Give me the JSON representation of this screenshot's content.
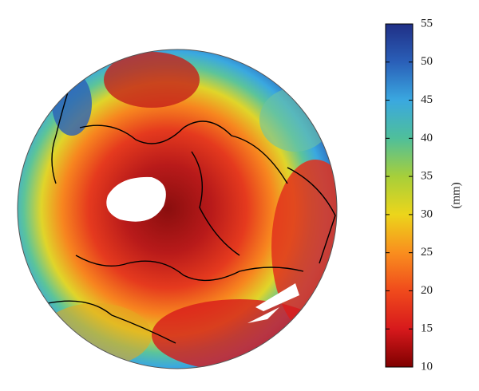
{
  "colorbar": {
    "label": "(mm)",
    "lim": [
      10,
      55
    ],
    "ticks": [
      10,
      15,
      20,
      25,
      30,
      35,
      40,
      45,
      50,
      55
    ],
    "colormap": [
      "#7f0000",
      "#d7191c",
      "#f04a1c",
      "#f98e1e",
      "#ecd51b",
      "#a7cf3a",
      "#4fbf9a",
      "#3aa8e0",
      "#2a5fb8",
      "#202f86"
    ]
  }
}
